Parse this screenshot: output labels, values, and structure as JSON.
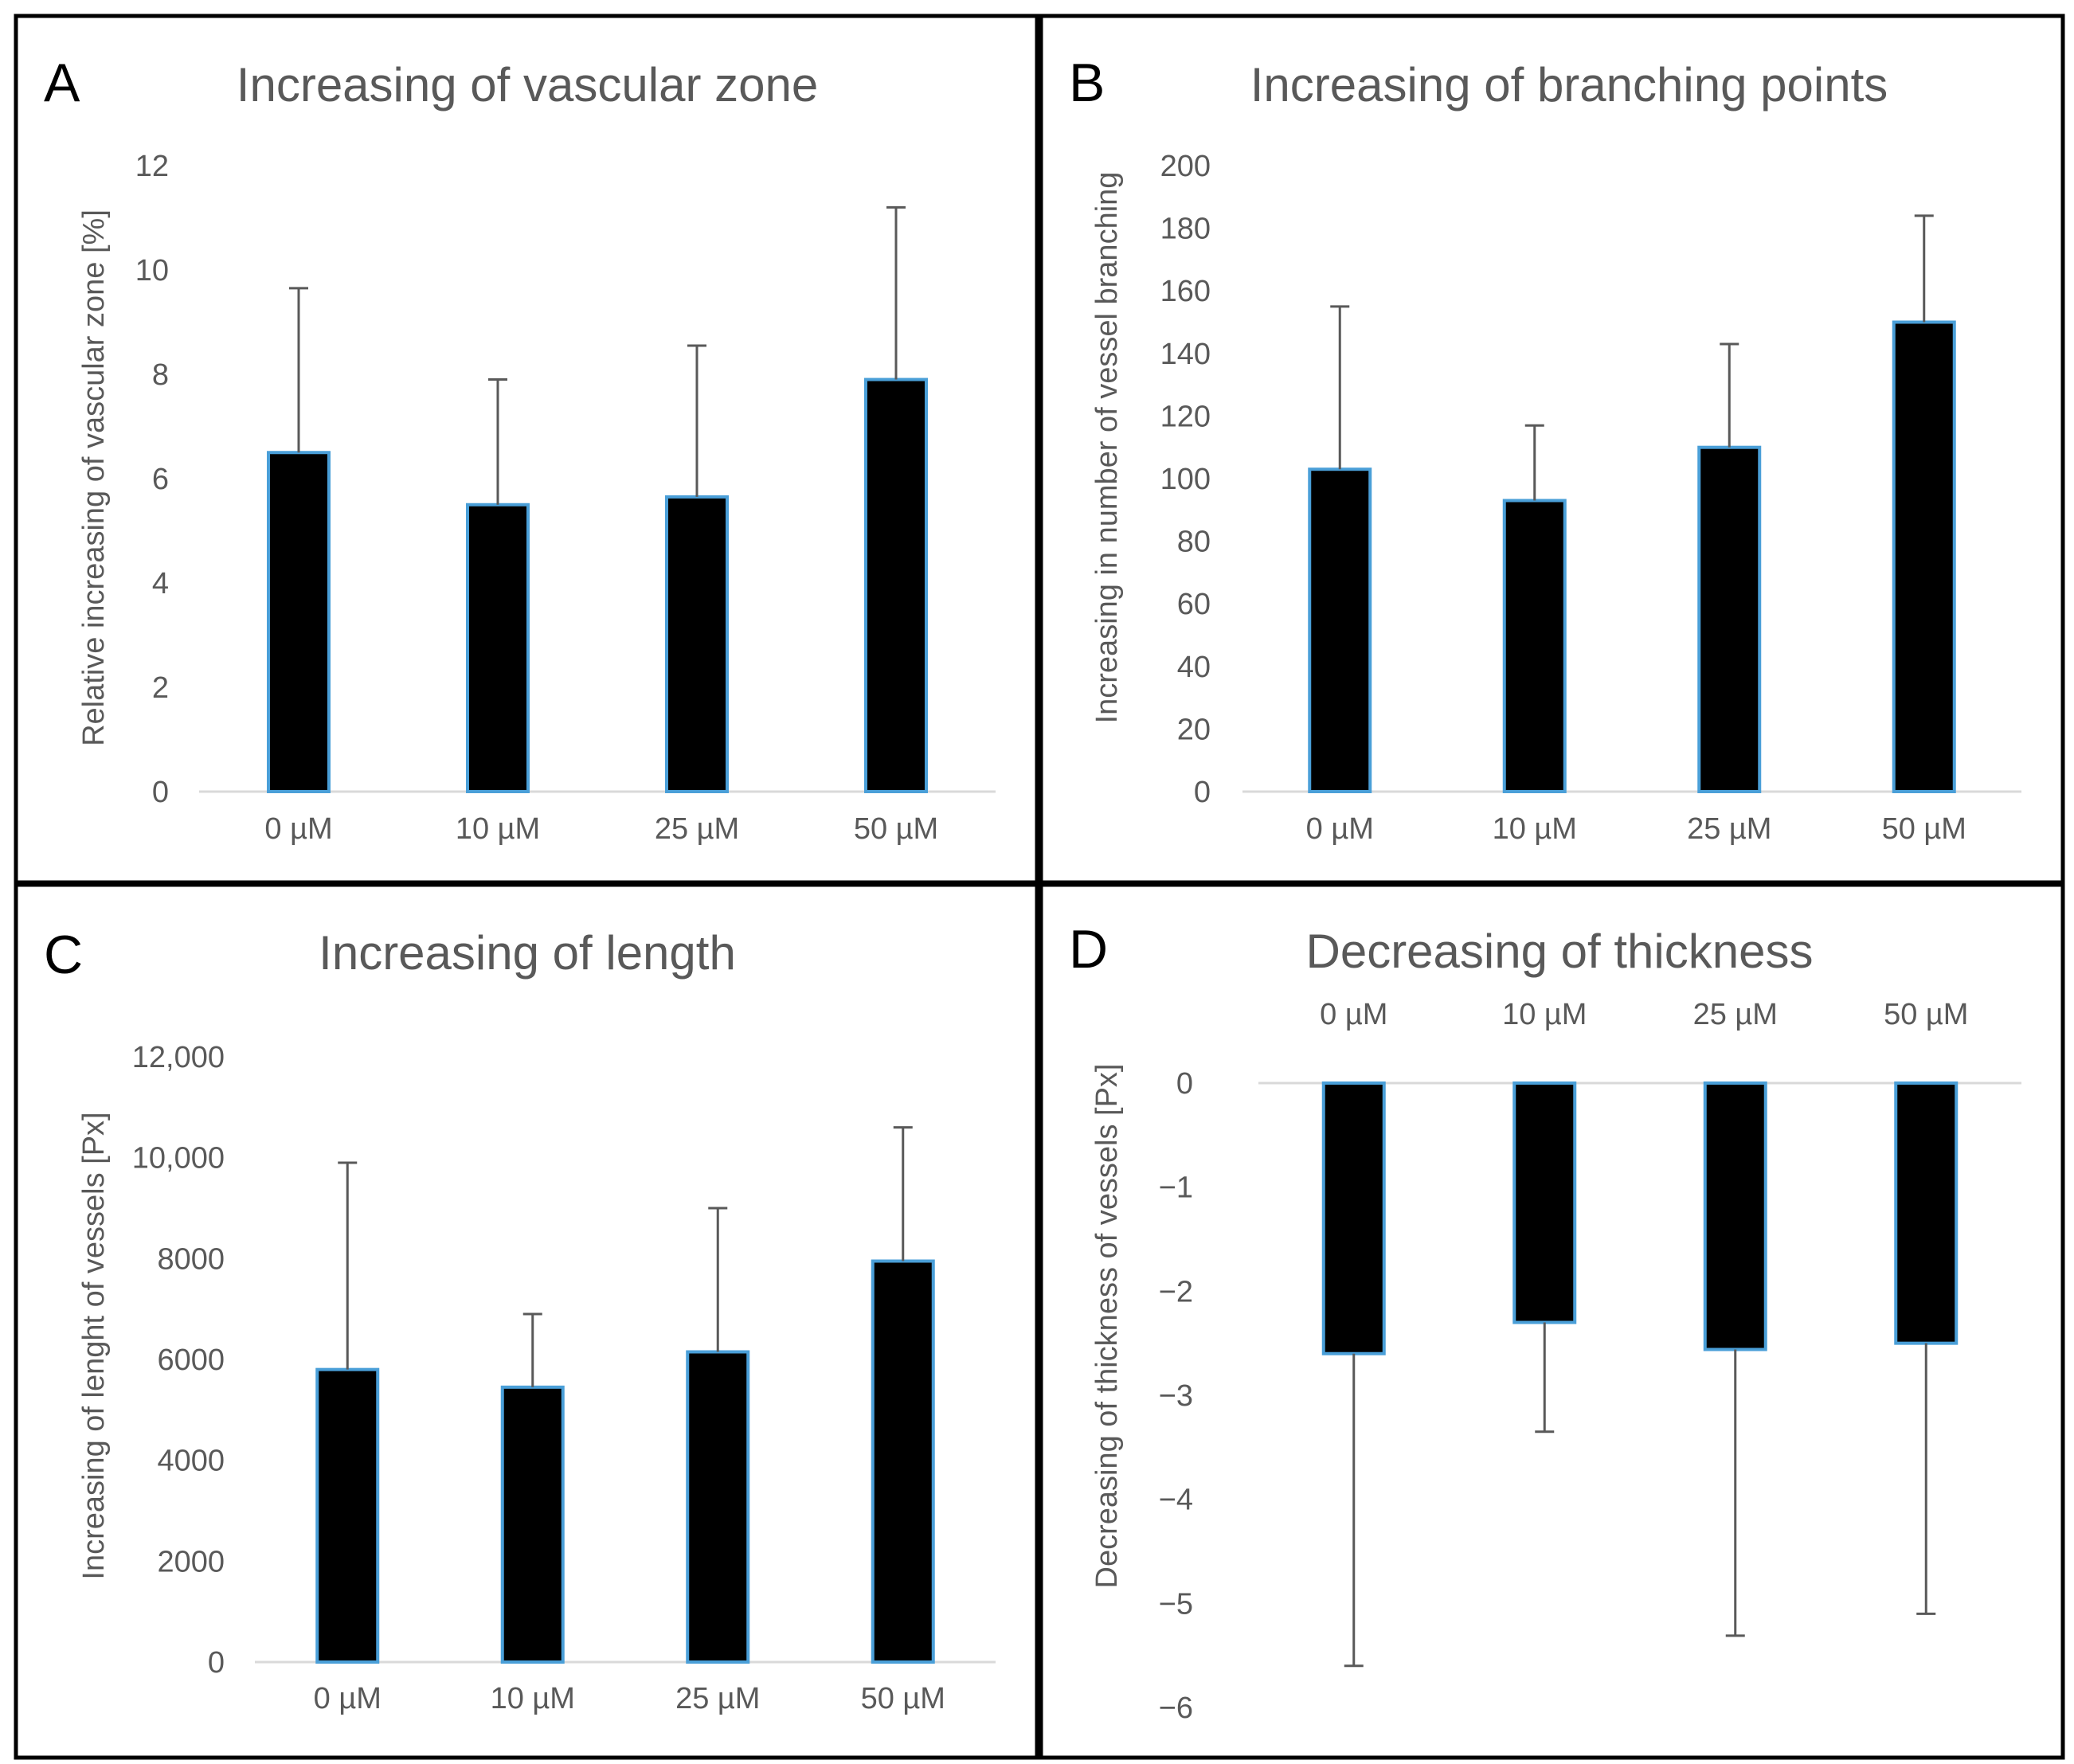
{
  "colors": {
    "bar_fill": "#000000",
    "bar_edge": "#4a9fd8",
    "axis": "#d9d9d9",
    "text": "#595959",
    "error": "#595959",
    "frame": "#000000"
  },
  "chart_data": [
    {
      "panel": "A",
      "type": "bar",
      "title": "Increasing of vascular zone",
      "xlabel": "",
      "ylabel": "Relative increasing of vascular zone [%]",
      "categories": [
        "0 µM",
        "10 µM",
        "25 µM",
        "50 µM"
      ],
      "values": [
        6.5,
        5.5,
        5.65,
        7.9
      ],
      "error_plus": [
        3.15,
        2.4,
        2.9,
        3.3
      ],
      "ylim": [
        0,
        12
      ],
      "yticks": [
        0,
        2,
        4,
        6,
        8,
        10,
        12
      ],
      "ytick_labels": [
        "0",
        "2",
        "4",
        "6",
        "8",
        "10",
        "12"
      ],
      "category_axis": "bottom"
    },
    {
      "panel": "B",
      "type": "bar",
      "title": "Increasing of branching points",
      "xlabel": "",
      "ylabel": "Increasing in number of vessel branching",
      "categories": [
        "0 µM",
        "10 µM",
        "25 µM",
        "50 µM"
      ],
      "values": [
        103,
        93,
        110,
        150
      ],
      "error_plus": [
        52,
        24,
        33,
        34
      ],
      "ylim": [
        0,
        200
      ],
      "yticks": [
        0,
        20,
        40,
        60,
        80,
        100,
        120,
        140,
        160,
        180,
        200
      ],
      "ytick_labels": [
        "0",
        "20",
        "40",
        "60",
        "80",
        "100",
        "120",
        "140",
        "160",
        "180",
        "200"
      ],
      "category_axis": "bottom"
    },
    {
      "panel": "C",
      "type": "bar",
      "title": "Increasing of length",
      "xlabel": "",
      "ylabel": "Increasing of lenght of vessels [Px]",
      "categories": [
        "0 µM",
        "10 µM",
        "25 µM",
        "50 µM"
      ],
      "values": [
        5800,
        5450,
        6150,
        7950
      ],
      "error_plus": [
        4100,
        1450,
        2850,
        2650
      ],
      "ylim": [
        0,
        12000
      ],
      "yticks": [
        0,
        2000,
        4000,
        6000,
        8000,
        10000,
        12000
      ],
      "ytick_labels": [
        "0",
        "2000",
        "4000",
        "6000",
        "8000",
        "10,000",
        "12,000"
      ],
      "category_axis": "bottom"
    },
    {
      "panel": "D",
      "type": "bar",
      "title": "Decreasing of thickness",
      "xlabel": "",
      "ylabel": "Decreasing of thickness of vessels [Px]",
      "categories": [
        "0 µM",
        "10 µM",
        "25 µM",
        "50 µM"
      ],
      "values": [
        -2.6,
        -2.3,
        -2.56,
        -2.5
      ],
      "error_minus": [
        3.0,
        1.05,
        2.75,
        2.6
      ],
      "ylim": [
        -6,
        0
      ],
      "yticks": [
        -6,
        -5,
        -4,
        -3,
        -2,
        -1,
        0
      ],
      "ytick_labels": [
        "−6",
        "−5",
        "−4",
        "−3",
        "−2",
        "−1",
        "0"
      ],
      "category_axis": "top"
    }
  ]
}
